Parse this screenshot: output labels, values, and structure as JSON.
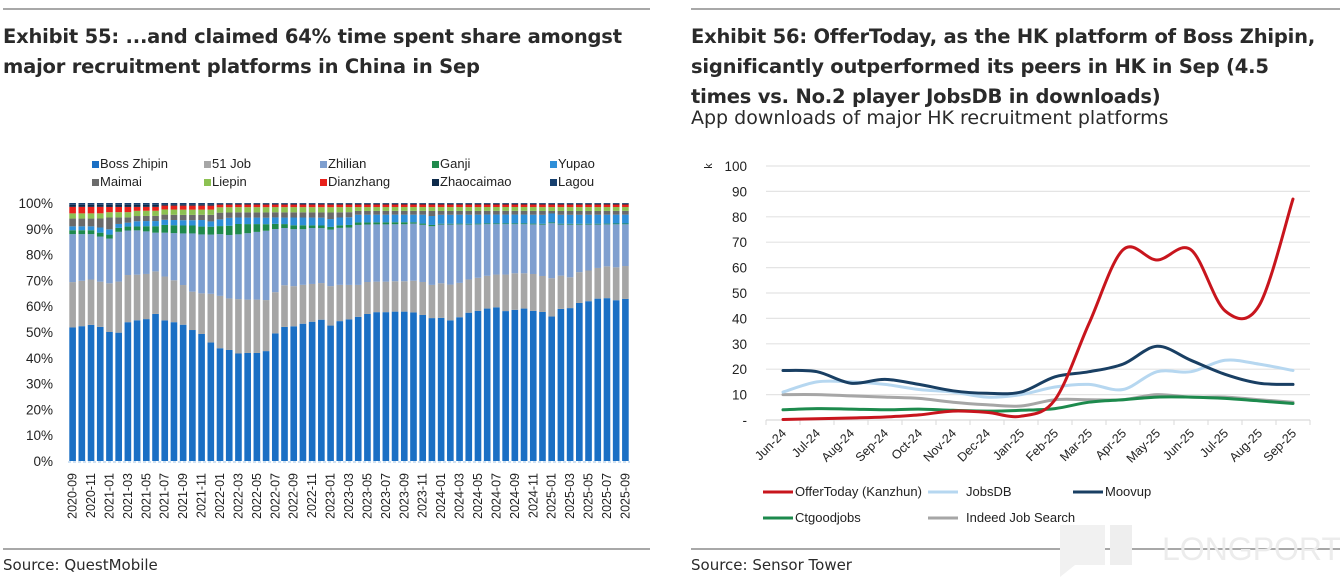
{
  "left": {
    "title_line1": "Exhibit 55: ...and claimed 64% time spent share amongst",
    "title_line2": "major recruitment platforms in China in Sep",
    "source": "Source: QuestMobile"
  },
  "right": {
    "title_line1": "Exhibit 56: OfferToday, as the HK platform of Boss Zhipin,",
    "title_line2": "significantly outperformed its peers in HK in Sep (4.5",
    "title_line3": "times vs. No.2 player JobsDB in downloads)",
    "subtitle": "App downloads of major HK recruitment platforms",
    "source": "Source: Sensor Tower"
  },
  "watermark": "LONGPORT",
  "chart_data": [
    {
      "type": "bar",
      "stacked": true,
      "title": "Exhibit 55: ...and claimed 64% time spent share amongst major recruitment platforms in China in Sep",
      "xlabel": "",
      "ylabel": "",
      "ylim": [
        0,
        100
      ],
      "y_ticks": [
        "0%",
        "10%",
        "20%",
        "30%",
        "40%",
        "50%",
        "60%",
        "70%",
        "80%",
        "90%",
        "100%"
      ],
      "legend_position": "top",
      "x_tick_labels": [
        "2020-09",
        "2020-11",
        "2021-01",
        "2021-03",
        "2021-05",
        "2021-07",
        "2021-09",
        "2021-11",
        "2022-01",
        "2022-03",
        "2022-05",
        "2022-07",
        "2022-09",
        "2022-11",
        "2023-01",
        "2023-03",
        "2023-05",
        "2023-07",
        "2023-09",
        "2023-11",
        "2024-01",
        "2024-03",
        "2024-05",
        "2024-07",
        "2024-09",
        "2024-11",
        "2025-01",
        "2025-03",
        "2025-05",
        "2025-07",
        "2025-09"
      ],
      "categories": [
        "2020-09",
        "2020-10",
        "2020-11",
        "2020-12",
        "2021-01",
        "2021-02",
        "2021-03",
        "2021-04",
        "2021-05",
        "2021-06",
        "2021-07",
        "2021-08",
        "2021-09",
        "2021-10",
        "2021-11",
        "2021-12",
        "2022-01",
        "2022-02",
        "2022-03",
        "2022-04",
        "2022-05",
        "2022-06",
        "2022-07",
        "2022-08",
        "2022-09",
        "2022-10",
        "2022-11",
        "2022-12",
        "2023-01",
        "2023-02",
        "2023-03",
        "2023-04",
        "2023-05",
        "2023-06",
        "2023-07",
        "2023-08",
        "2023-09",
        "2023-10",
        "2023-11",
        "2023-12",
        "2024-01",
        "2024-02",
        "2024-03",
        "2024-04",
        "2024-05",
        "2024-06",
        "2024-07",
        "2024-08",
        "2024-09",
        "2024-10",
        "2024-11",
        "2024-12",
        "2025-01",
        "2025-02",
        "2025-03",
        "2025-04",
        "2025-05",
        "2025-06",
        "2025-07",
        "2025-08",
        "2025-09"
      ],
      "series": [
        {
          "name": "Boss Zhipin",
          "color": "#1a6fc4",
          "values": [
            51.5,
            52,
            52.5,
            52,
            49,
            49,
            53,
            54,
            55,
            57,
            54.5,
            53,
            51.5,
            49.5,
            48.5,
            45,
            42,
            42,
            41.5,
            41.5,
            41.5,
            42,
            49.5,
            51.5,
            52,
            53,
            53.5,
            54,
            51.5,
            54,
            55.5,
            56.5,
            57.5,
            58.5,
            58.5,
            59,
            59,
            58.5,
            57.5,
            56,
            56,
            55,
            56.5,
            58,
            59,
            60.5,
            61,
            59.5,
            60,
            60.5,
            59,
            58,
            56.5,
            59.5,
            59.5,
            61.5,
            62.5,
            63.5,
            64,
            63.5,
            64
          ]
        },
        {
          "name": "51 Job",
          "color": "#a6a6a6",
          "values": [
            17.5,
            17.5,
            17.5,
            17.5,
            18.5,
            19.5,
            18,
            17.5,
            17.5,
            16.5,
            17,
            16,
            15,
            14.5,
            15.5,
            18.5,
            19.5,
            19.5,
            21,
            20.5,
            20.5,
            19.5,
            16,
            16,
            15.5,
            15,
            14.5,
            14,
            15,
            14,
            13.5,
            12.5,
            12.5,
            12,
            12,
            12,
            12,
            12.5,
            13,
            13,
            13.5,
            14,
            13.5,
            13,
            13,
            13,
            13,
            14.5,
            14.5,
            14,
            14.5,
            14,
            15,
            13,
            12,
            12,
            12,
            12,
            12.5,
            13,
            13
          ]
        },
        {
          "name": "Zhilian",
          "color": "#7f9fcf",
          "values": [
            18.5,
            18,
            17.5,
            17.5,
            17,
            19,
            17,
            17,
            16.5,
            15,
            17,
            18,
            19.5,
            22,
            22.5,
            22.5,
            23,
            24,
            25,
            25.5,
            26,
            26.5,
            24.5,
            22,
            22,
            21.5,
            21.5,
            21,
            21.5,
            22,
            22.5,
            23.5,
            22.5,
            22.5,
            22.5,
            22.5,
            22.5,
            22.5,
            22.5,
            23,
            23,
            23.5,
            23,
            21.5,
            21,
            20.5,
            20,
            20,
            19.5,
            19.5,
            19.5,
            20,
            21.5,
            20,
            20.5,
            18.5,
            18,
            17,
            16.5,
            17,
            16.5
          ]
        },
        {
          "name": "Ganji",
          "color": "#1f8a4c",
          "values": [
            1.5,
            1.5,
            1.5,
            1.5,
            1.5,
            1.5,
            1.5,
            1.5,
            2,
            2.5,
            3,
            3,
            3,
            3,
            3,
            3,
            3,
            3.5,
            4,
            3.5,
            3,
            2.5,
            2,
            1.5,
            1.5,
            1.5,
            1,
            1,
            1,
            1,
            1,
            1,
            0.8,
            0.8,
            0.8,
            0.8,
            0.8,
            0.5,
            0.5,
            0.5,
            0.3,
            0.3,
            0.3,
            0.3,
            0.3,
            0.3,
            0.3,
            0.3,
            0.3,
            0.3,
            0.3,
            0.3,
            0.3,
            0.3,
            0.3,
            0.3,
            0.3,
            0.3,
            0.3,
            0.3,
            0.3
          ]
        },
        {
          "name": "Yupao",
          "color": "#2f8fd8",
          "values": [
            1.5,
            1.5,
            1.5,
            2,
            2,
            1.5,
            1.5,
            2,
            2,
            2,
            2,
            2,
            2,
            2,
            2.5,
            2,
            2.5,
            3,
            2.5,
            2.5,
            2.5,
            2.5,
            2.5,
            2.5,
            3,
            3,
            3,
            3,
            3,
            3,
            3,
            3,
            3,
            3,
            3,
            3,
            3,
            3,
            3.5,
            3.5,
            3.5,
            3.5,
            3.5,
            3.5,
            3.5,
            3.5,
            3.5,
            3.5,
            3.5,
            3.5,
            3.5,
            3.5,
            3.5,
            3.5,
            3.5,
            3.5,
            3.5,
            3.5,
            3.5,
            3.5,
            3.5
          ]
        },
        {
          "name": "Maimai",
          "color": "#6b6b6b",
          "values": [
            3,
            3,
            3,
            3.5,
            4.5,
            2.5,
            2,
            2,
            2,
            2,
            2,
            2,
            2,
            2,
            2,
            2.5,
            2.5,
            2,
            2,
            2,
            2,
            2,
            2,
            2,
            2,
            2,
            2,
            2,
            2.5,
            2,
            2,
            1.5,
            1.5,
            1.5,
            1.5,
            1.5,
            1.5,
            1.5,
            1.5,
            2,
            1.5,
            1.5,
            1.5,
            1.5,
            1.5,
            1.5,
            1.5,
            1.5,
            1.5,
            1.5,
            1.5,
            1.5,
            1,
            1.5,
            1.5,
            1.5,
            1.5,
            1.5,
            1.5,
            1.5,
            1.5
          ]
        },
        {
          "name": "Liepin",
          "color": "#8cc152",
          "values": [
            2,
            2,
            2,
            2,
            2,
            2,
            2,
            2,
            2,
            2,
            2,
            2,
            2,
            2,
            2,
            2,
            2,
            2,
            2,
            2,
            2,
            2,
            2,
            2,
            2,
            2,
            2,
            2,
            2,
            2,
            2,
            1.5,
            1.5,
            1.5,
            1.5,
            1.5,
            1.5,
            1.5,
            1.5,
            1.5,
            1.5,
            1.5,
            1.5,
            1.5,
            1.5,
            1.5,
            1.5,
            1.5,
            1.5,
            1.5,
            1.5,
            1.5,
            1.5,
            1.5,
            1.5,
            1.5,
            1.5,
            1.5,
            1.5,
            1.5,
            1.5
          ]
        },
        {
          "name": "Dianzhang",
          "color": "#e8211b",
          "values": [
            2.5,
            2.5,
            2.5,
            2.5,
            2,
            2,
            2,
            1.5,
            1.5,
            1.5,
            1.5,
            1.5,
            1.5,
            1.5,
            1.5,
            1.5,
            1,
            1,
            1,
            1,
            1,
            1,
            1,
            1,
            1,
            1,
            1,
            1,
            1,
            1,
            1,
            1,
            1,
            1,
            1,
            1,
            1,
            1,
            1,
            1,
            1,
            1,
            1,
            1,
            1,
            1,
            1,
            1,
            1,
            1,
            1,
            1,
            1,
            1,
            1,
            1,
            1,
            1,
            1,
            1,
            1
          ]
        },
        {
          "name": "Zhaocaimao",
          "color": "#0d2a4a",
          "values": [
            0.8,
            0.8,
            0.8,
            0.8,
            0.8,
            0.8,
            0.8,
            0.8,
            0.8,
            0.8,
            0.5,
            0.5,
            0.5,
            0.5,
            0.5,
            0.5,
            0.3,
            0.3,
            0.3,
            0.3,
            0.3,
            0.3,
            0.3,
            0.3,
            0.3,
            0.3,
            0.3,
            0.3,
            0.3,
            0.3,
            0.3,
            0.3,
            0.3,
            0.3,
            0.3,
            0.3,
            0.3,
            0.3,
            0.3,
            0.3,
            0.3,
            0.3,
            0.3,
            0.3,
            0.3,
            0.3,
            0.3,
            0.3,
            0.3,
            0.3,
            0.3,
            0.3,
            0.3,
            0.3,
            0.3,
            0.3,
            0.3,
            0.3,
            0.3,
            0.3,
            0.3
          ]
        },
        {
          "name": "Lagou",
          "color": "#17406e",
          "values": [
            0.7,
            0.7,
            0.7,
            0.7,
            0.7,
            0.7,
            0.7,
            0.7,
            0.7,
            0.7,
            0.5,
            0.5,
            0.5,
            0.5,
            0.5,
            0.5,
            0.3,
            0.3,
            0.3,
            0.3,
            0.3,
            0.3,
            0.3,
            0.3,
            0.3,
            0.3,
            0.3,
            0.3,
            0.3,
            0.3,
            0.3,
            0.3,
            0.3,
            0.3,
            0.3,
            0.3,
            0.3,
            0.3,
            0.3,
            0.3,
            0.3,
            0.3,
            0.3,
            0.3,
            0.3,
            0.3,
            0.3,
            0.3,
            0.3,
            0.3,
            0.3,
            0.3,
            0.3,
            0.3,
            0.3,
            0.3,
            0.3,
            0.3,
            0.3,
            0.3,
            0.3
          ]
        }
      ]
    },
    {
      "type": "line",
      "title": "App downloads of major HK recruitment platforms",
      "xlabel": "",
      "ylabel": "k",
      "ylim": [
        0,
        100
      ],
      "y_ticks": [
        "-",
        "10",
        "20",
        "30",
        "40",
        "50",
        "60",
        "70",
        "80",
        "90",
        "100"
      ],
      "grid": true,
      "legend_position": "bottom",
      "categories": [
        "Jun-24",
        "Jul-24",
        "Aug-24",
        "Sep-24",
        "Oct-24",
        "Nov-24",
        "Dec-24",
        "Jan-25",
        "Feb-25",
        "Mar-25",
        "Apr-25",
        "May-25",
        "Jun-25",
        "Jul-25",
        "Aug-25",
        "Sep-25"
      ],
      "series": [
        {
          "name": "OfferToday (Kanzhun)",
          "color": "#c8151d",
          "values": [
            0.2,
            0.5,
            0.8,
            1.2,
            2,
            3.5,
            3,
            1.5,
            8,
            38,
            67,
            63,
            67,
            43,
            45,
            87
          ]
        },
        {
          "name": "JobsDB",
          "color": "#b6d7f0",
          "values": [
            11,
            15,
            15,
            14,
            12,
            11,
            9,
            10,
            13,
            14,
            12,
            19,
            19,
            23.5,
            22,
            19.5
          ]
        },
        {
          "name": "Moovup",
          "color": "#193f63",
          "values": [
            19.5,
            19,
            14.5,
            16,
            14,
            11.5,
            10.5,
            11,
            17,
            19,
            22,
            29,
            23.5,
            18,
            14.5,
            14
          ]
        },
        {
          "name": "Ctgoodjobs",
          "color": "#1d8a4d",
          "values": [
            4,
            4.5,
            4.3,
            4,
            4.3,
            3.8,
            3.5,
            3.8,
            4.5,
            7,
            8,
            9,
            9,
            8.5,
            7.5,
            6.5
          ]
        },
        {
          "name": "Indeed Job Search",
          "color": "#a6a6a6",
          "values": [
            10,
            10,
            9.5,
            9,
            8.5,
            7,
            6,
            5.5,
            8,
            8,
            8,
            10,
            9,
            9,
            8,
            7
          ]
        }
      ]
    }
  ]
}
